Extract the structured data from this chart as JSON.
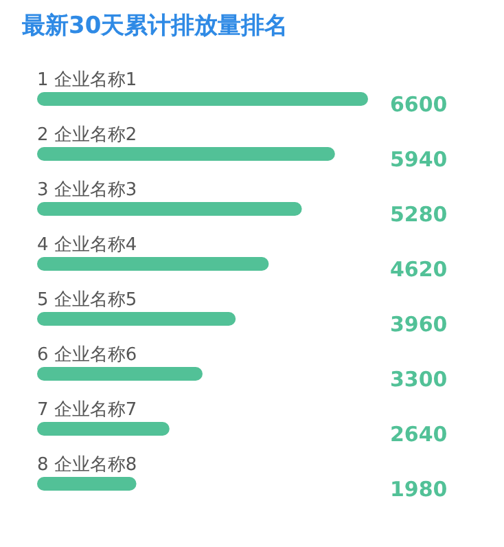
{
  "chart_data": {
    "type": "bar",
    "orientation": "horizontal",
    "title": "最新30天累计排放量排名",
    "categories": [
      "1 企业名称1",
      "2 企业名称2",
      "3 企业名称3",
      "4 企业名称4",
      "5 企业名称5",
      "6 企业名称6",
      "7 企业名称7",
      "8 企业名称8"
    ],
    "values": [
      6600,
      5940,
      5280,
      4620,
      3960,
      3300,
      2640,
      1980
    ],
    "color": "#52c197",
    "data_labels": true,
    "grid": false,
    "legend": false
  }
}
